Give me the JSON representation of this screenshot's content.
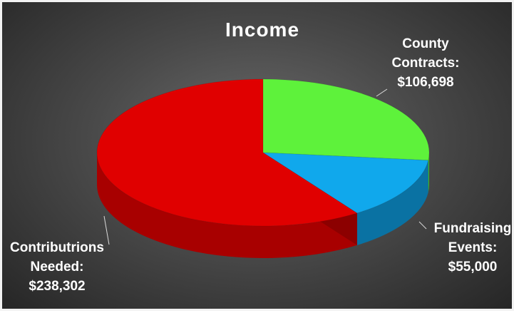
{
  "chart_data": {
    "type": "pie",
    "title": "Income",
    "slices": [
      {
        "label_lines": [
          "Contributrions",
          "Needed:",
          "$238,302"
        ],
        "value": 238302,
        "color": "#e00000",
        "side_color": "#a80000"
      },
      {
        "label_lines": [
          "County",
          "Contracts:",
          "$106,698"
        ],
        "value": 106698,
        "color": "#5ef23b",
        "side_color": "#3fb525"
      },
      {
        "label_lines": [
          "Fundraising",
          "Events:",
          "$55,000"
        ],
        "value": 55000,
        "color": "#10a8ec",
        "side_color": "#0a72a3"
      }
    ],
    "style": "3d-tilted"
  }
}
